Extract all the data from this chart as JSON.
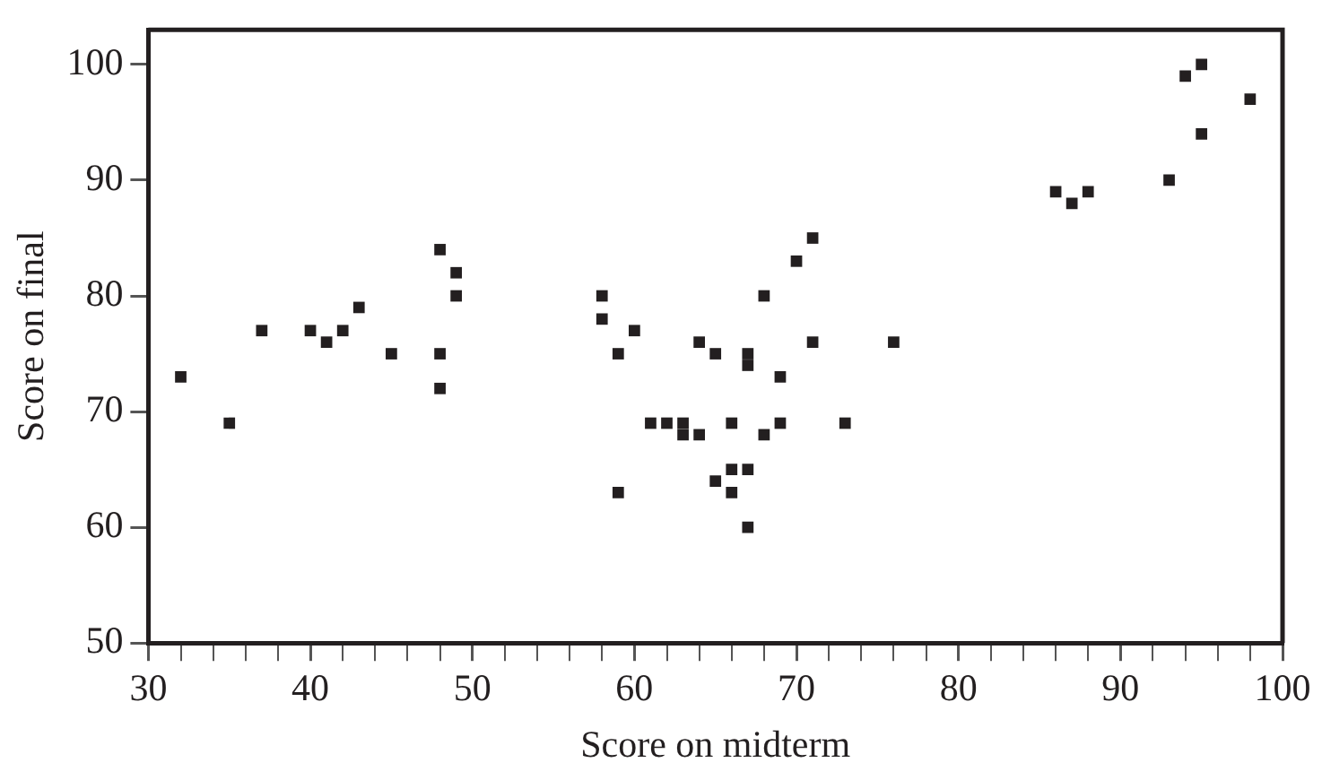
{
  "chart_data": {
    "type": "scatter",
    "xlabel": "Score on midterm",
    "ylabel": "Score on final",
    "series": [
      {
        "color": "#231f20",
        "x": [
          32,
          35,
          37,
          40,
          41,
          42,
          43,
          45,
          48,
          48,
          48,
          49,
          49,
          58,
          58,
          59,
          60,
          59,
          61,
          62,
          63,
          63,
          64,
          64,
          65,
          65,
          66,
          66,
          66,
          67,
          67,
          67,
          67,
          68,
          68,
          69,
          69,
          70,
          71,
          71,
          73,
          76,
          86,
          87,
          88,
          93,
          94,
          95,
          95,
          98
        ],
        "values": [
          73,
          69,
          77,
          77,
          76,
          77,
          79,
          75,
          84,
          75,
          72,
          82,
          80,
          80,
          78,
          75,
          77,
          63,
          69,
          69,
          69,
          68,
          68,
          76,
          75,
          64,
          69,
          65,
          63,
          75,
          74,
          65,
          60,
          80,
          68,
          73,
          69,
          83,
          85,
          76,
          69,
          76,
          89,
          88,
          89,
          90,
          99,
          100,
          94,
          97
        ]
      }
    ],
    "marker": "square",
    "xlim": [
      30,
      100
    ],
    "xticks": [
      30,
      {
        "value": 32,
        "label": null
      },
      {
        "value": 34,
        "label": null
      },
      {
        "value": 36,
        "label": null
      },
      {
        "value": 38,
        "label": null
      },
      40,
      {
        "value": 42,
        "label": null
      },
      {
        "value": 44,
        "label": null
      },
      {
        "value": 46,
        "label": null
      },
      {
        "value": 48,
        "label": null
      },
      50,
      {
        "value": 52,
        "label": null
      },
      {
        "value": 54,
        "label": null
      },
      {
        "value": 56,
        "label": null
      },
      {
        "value": 58,
        "label": null
      },
      60,
      {
        "value": 62,
        "label": null
      },
      {
        "value": 64,
        "label": null
      },
      {
        "value": 66,
        "label": null
      },
      {
        "value": 68,
        "label": null
      },
      70,
      {
        "value": 72,
        "label": null
      },
      {
        "value": 74,
        "label": null
      },
      {
        "value": 76,
        "label": null
      },
      {
        "value": 78,
        "label": null
      },
      80,
      {
        "value": 82,
        "label": null
      },
      {
        "value": 84,
        "label": null
      },
      {
        "value": 86,
        "label": null
      },
      {
        "value": 88,
        "label": null
      },
      90,
      {
        "value": 92,
        "label": null
      },
      {
        "value": 94,
        "label": null
      },
      {
        "value": 96,
        "label": null
      },
      {
        "value": 98,
        "label": null
      },
      100
    ],
    "ylim": [
      50,
      103
    ],
    "yticks": [
      50,
      60,
      70,
      80,
      90,
      100
    ],
    "grid": false,
    "legend": false
  }
}
